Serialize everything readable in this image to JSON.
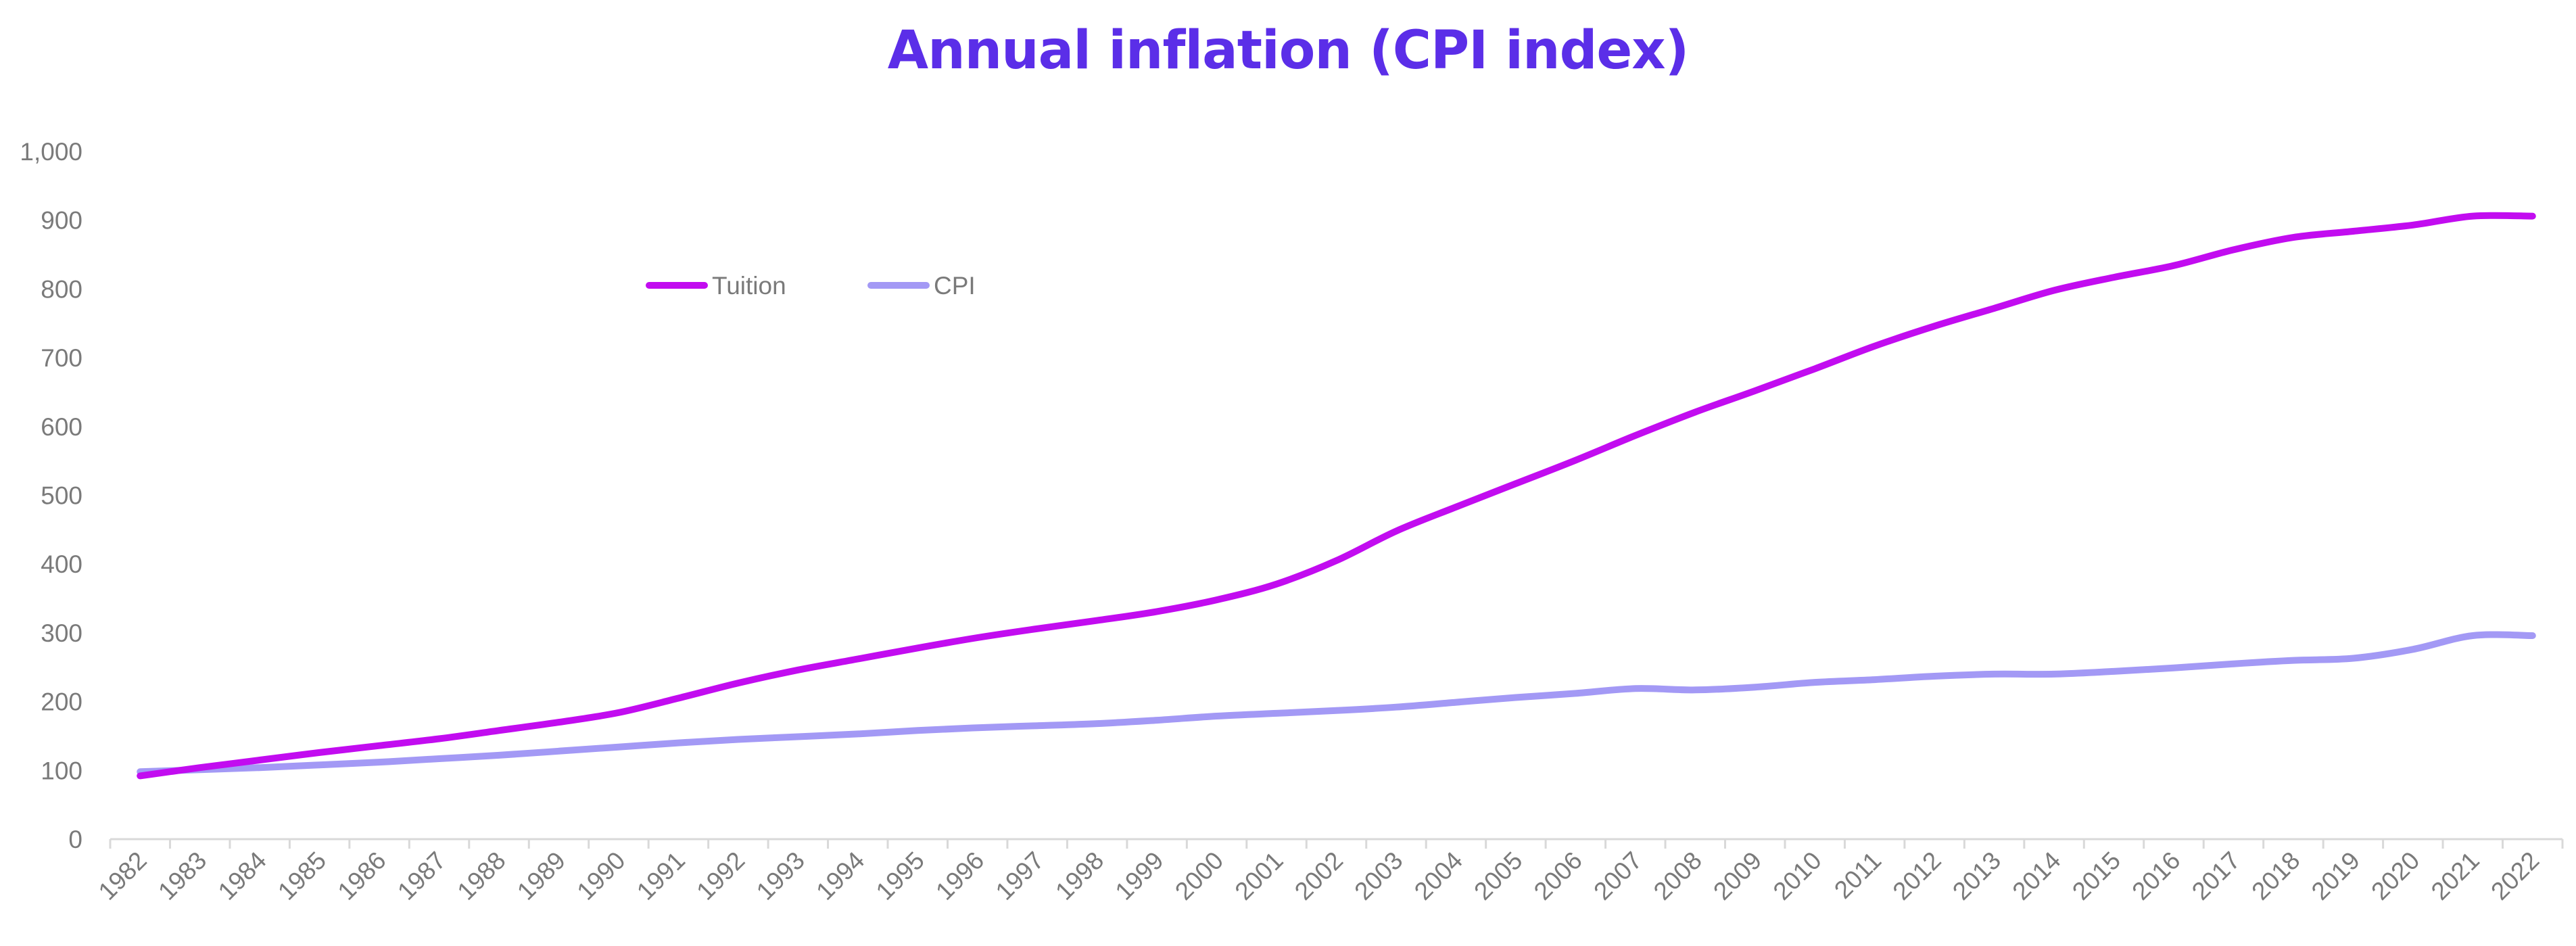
{
  "colors": {
    "title": "#5b2ee8",
    "tuition": "#c20cf0",
    "cpi": "#a399f5",
    "axis": "#d9d9d9",
    "tick_text": "#7a7a7a"
  },
  "chart_data": {
    "type": "line",
    "title": "Annual inflation (CPI index)",
    "xlabel": "",
    "ylabel": "",
    "ylim": [
      0,
      1000
    ],
    "yticks": [
      "0",
      "100",
      "200",
      "300",
      "400",
      "500",
      "600",
      "700",
      "800",
      "900",
      "1,000"
    ],
    "grid": false,
    "legend_position": "top-left",
    "categories": [
      "1982",
      "1983",
      "1984",
      "1985",
      "1986",
      "1987",
      "1988",
      "1989",
      "1990",
      "1991",
      "1992",
      "1993",
      "1994",
      "1995",
      "1996",
      "1997",
      "1998",
      "1999",
      "2000",
      "2001",
      "2002",
      "2003",
      "2004",
      "2005",
      "2006",
      "2007",
      "2008",
      "2009",
      "2010",
      "2011",
      "2012",
      "2013",
      "2014",
      "2015",
      "2016",
      "2017",
      "2018",
      "2019",
      "2020",
      "2021",
      "2022"
    ],
    "series": [
      {
        "name": "Tuition",
        "values": [
          92,
          104,
          115,
          126,
          136,
          146,
          158,
          170,
          184,
          205,
          227,
          246,
          262,
          278,
          293,
          306,
          318,
          331,
          348,
          371,
          405,
          448,
          483,
          517,
          551,
          587,
          621,
          652,
          684,
          717,
          746,
          772,
          798,
          817,
          834,
          857,
          875,
          884,
          893,
          906,
          906
        ]
      },
      {
        "name": "CPI",
        "values": [
          98,
          101,
          104,
          108,
          112,
          117,
          122,
          128,
          134,
          140,
          145,
          149,
          153,
          158,
          162,
          165,
          168,
          173,
          179,
          183,
          187,
          192,
          199,
          206,
          212,
          219,
          217,
          221,
          228,
          232,
          237,
          240,
          240,
          244,
          249,
          255,
          260,
          263,
          276,
          296,
          296
        ]
      }
    ]
  }
}
